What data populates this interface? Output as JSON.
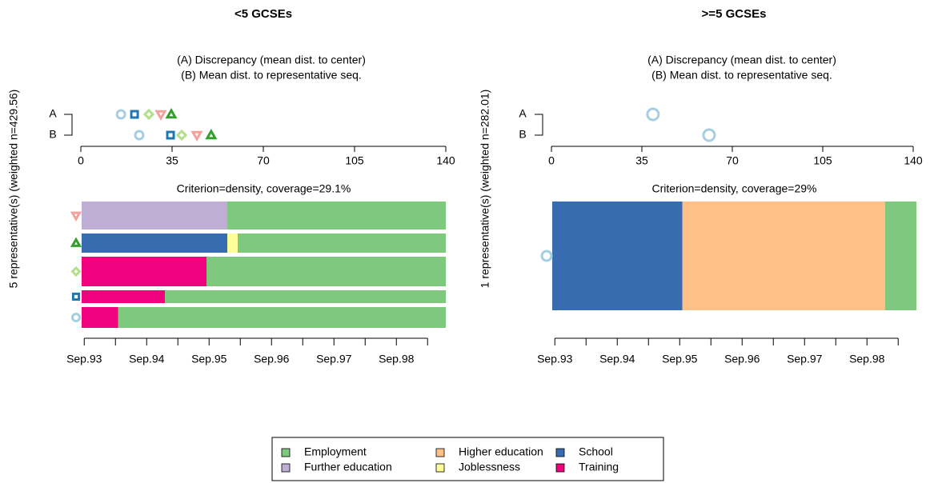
{
  "chart_data": [
    {
      "type": "representative-sequence",
      "title": "<5 GCSEs",
      "ylabel": "5 representative(s) (weighted n=429.56)",
      "legend_lines": [
        "(A) Discrepancy (mean dist. to center)",
        "(B) Mean dist. to representative seq."
      ],
      "row_labels": [
        "A",
        "B"
      ],
      "xlim": [
        0,
        140
      ],
      "xticks": [
        0,
        35,
        70,
        105,
        140
      ],
      "criterion": "Criterion=density, coverage=29.1%",
      "time_lim": [
        0,
        70
      ],
      "time_ticks": [
        {
          "value": 0.5,
          "label": "Sep.93"
        },
        {
          "value": 12.5,
          "label": "Sep.94"
        },
        {
          "value": 24.5,
          "label": "Sep.95"
        },
        {
          "value": 36.5,
          "label": "Sep.96"
        },
        {
          "value": 48.5,
          "label": "Sep.97"
        },
        {
          "value": 60.5,
          "label": "Sep.98"
        }
      ],
      "time_minor_ticks": [
        6.5,
        18.5,
        30.5,
        42.5,
        54.5,
        66.5
      ],
      "representatives": [
        {
          "marker": "triangle-down",
          "color": "#f4a09c",
          "A": 30.7,
          "B": 44.5,
          "weight": 35,
          "segments": [
            {
              "state": "Further education",
              "months": 28
            },
            {
              "state": "Employment",
              "months": 42
            }
          ]
        },
        {
          "marker": "triangle-up",
          "color": "#33a02c",
          "A": 34.7,
          "B": 50.0,
          "weight": 24,
          "segments": [
            {
              "state": "School",
              "months": 28
            },
            {
              "state": "Joblessness",
              "months": 2
            },
            {
              "state": "Employment",
              "months": 40
            }
          ]
        },
        {
          "marker": "diamond",
          "color": "#b2df8a",
          "A": 26.1,
          "B": 38.7,
          "weight": 37,
          "segments": [
            {
              "state": "Training",
              "months": 24
            },
            {
              "state": "Employment",
              "months": 46
            }
          ]
        },
        {
          "marker": "square",
          "color": "#1f78b4",
          "A": 20.6,
          "B": 34.4,
          "weight": 16,
          "segments": [
            {
              "state": "Training",
              "months": 16
            },
            {
              "state": "Employment",
              "months": 54
            }
          ]
        },
        {
          "marker": "circle",
          "color": "#a6cee3",
          "A": 15.4,
          "B": 22.4,
          "weight": 26,
          "segments": [
            {
              "state": "Training",
              "months": 7
            },
            {
              "state": "Employment",
              "months": 63
            }
          ]
        }
      ]
    },
    {
      "type": "representative-sequence",
      "title": ">=5 GCSEs",
      "ylabel": "1 representative(s) (weighted n=282.01)",
      "legend_lines": [
        "(A) Discrepancy (mean dist. to center)",
        "(B) Mean dist. to representative seq."
      ],
      "row_labels": [
        "A",
        "B"
      ],
      "xlim": [
        0,
        140
      ],
      "xticks": [
        0,
        35,
        70,
        105,
        140
      ],
      "criterion": "Criterion=density, coverage=29%",
      "time_lim": [
        0,
        70
      ],
      "time_ticks": [
        {
          "value": 0.5,
          "label": "Sep.93"
        },
        {
          "value": 12.5,
          "label": "Sep.94"
        },
        {
          "value": 24.5,
          "label": "Sep.95"
        },
        {
          "value": 36.5,
          "label": "Sep.96"
        },
        {
          "value": 48.5,
          "label": "Sep.97"
        },
        {
          "value": 60.5,
          "label": "Sep.98"
        }
      ],
      "time_minor_ticks": [
        6.5,
        18.5,
        30.5,
        42.5,
        54.5,
        66.5
      ],
      "representatives": [
        {
          "marker": "circle",
          "color": "#a6cee3",
          "A": 39.3,
          "B": 61.0,
          "weight": 1,
          "segments": [
            {
              "state": "School",
              "months": 25
            },
            {
              "state": "Higher education",
              "months": 39
            },
            {
              "state": "Employment",
              "months": 6
            }
          ]
        }
      ]
    }
  ],
  "legend": [
    {
      "name": "Employment",
      "color": "#7fc97f"
    },
    {
      "name": "Further education",
      "color": "#beaed4"
    },
    {
      "name": "Higher education",
      "color": "#fdc086"
    },
    {
      "name": "Joblessness",
      "color": "#ffff99"
    },
    {
      "name": "School",
      "color": "#386cb0"
    },
    {
      "name": "Training",
      "color": "#f0027f"
    }
  ]
}
